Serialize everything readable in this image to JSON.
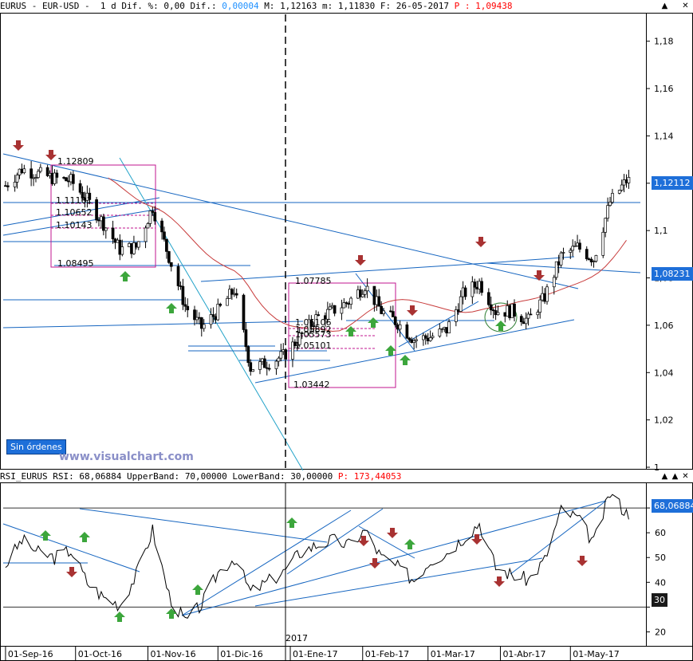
{
  "header": {
    "symbol": "EURUS - EUR-USD -",
    "period": "1 d",
    "dif_pct_label": "Dif. %:",
    "dif_pct": "0,00",
    "dif_label": "Dif.:",
    "dif": "0,00004",
    "max_label": "M:",
    "max": "1,12163",
    "min_label": "m:",
    "min": "1,11830",
    "date_label": "F:",
    "date": "26-05-2017",
    "p_label": "P :",
    "p_value": "1,09438"
  },
  "rsi_header": {
    "name": "RSI_EURUS RSI:",
    "value": "68,06884",
    "upper_label": "UpperBand:",
    "upper": "70,00000",
    "lower_label": "LowerBand:",
    "lower": "30,00000",
    "p_label": "P:",
    "p_value": "173,44053"
  },
  "window_controls": {
    "collapse": "▲",
    "expand": "▲",
    "close": "✕"
  },
  "orders_button": "Sin órdenes",
  "watermark": "www.visualchart.com",
  "price_badges": {
    "last": "1,12112",
    "level": "1,08231"
  },
  "rsi_badges": {
    "last": "68,06884",
    "band": "30"
  },
  "year_marker": "2017",
  "colors": {
    "candle_up": "#ffffff",
    "candle_down": "#000000",
    "trend_line": "#1565c0",
    "ma_line": "#c83c3c",
    "box_line": "#c0158f",
    "arrow_up": "#3ca63c",
    "arrow_down": "#a83232"
  },
  "chart_data": [
    {
      "type": "candlestick",
      "title": "EURUS - EUR-USD - 1 d",
      "y_axis_ticks": [
        "1,18",
        "1,16",
        "1,14",
        "1,12",
        "1,1",
        "1,08",
        "1,06",
        "1,04",
        "1,02",
        "1"
      ],
      "ylim": [
        1.0,
        1.19
      ],
      "x_axis_ticks": [
        "01-Sep-16",
        "01-Oct-16",
        "01-Nov-16",
        "01-Dic-16",
        "01-Ene-17",
        "01-Feb-17",
        "01-Mar-17",
        "01-Abr-17",
        "01-May-17"
      ],
      "xlim": [
        "2016-08-31",
        "2017-06-01"
      ],
      "annotations": [
        {
          "label": "1.12809",
          "value": 1.12809
        },
        {
          "label": "1.11161",
          "value": 1.11161
        },
        {
          "label": "1.10652",
          "value": 1.10652
        },
        {
          "label": "1.10143",
          "value": 1.10143
        },
        {
          "label": "1.08495",
          "value": 1.08495
        },
        {
          "label": "1.07785",
          "value": 1.07785
        },
        {
          "label": "1.06106",
          "value": 1.06106
        },
        {
          "label": "1.05892",
          "value": 1.05892
        },
        {
          "label": "1.05573",
          "value": 1.05573
        },
        {
          "label": "1.05101",
          "value": 1.05101
        },
        {
          "label": "1.03442",
          "value": 1.03442
        }
      ],
      "series": [
        {
          "date": "2016-09-01",
          "close": 1.119
        },
        {
          "date": "2016-09-08",
          "close": 1.126
        },
        {
          "date": "2016-09-15",
          "close": 1.124
        },
        {
          "date": "2016-09-22",
          "close": 1.122
        },
        {
          "date": "2016-09-29",
          "close": 1.121
        },
        {
          "date": "2016-10-06",
          "close": 1.113
        },
        {
          "date": "2016-10-13",
          "close": 1.103
        },
        {
          "date": "2016-10-20",
          "close": 1.092
        },
        {
          "date": "2016-10-27",
          "close": 1.093
        },
        {
          "date": "2016-11-03",
          "close": 1.11
        },
        {
          "date": "2016-11-10",
          "close": 1.089
        },
        {
          "date": "2016-11-17",
          "close": 1.068
        },
        {
          "date": "2016-11-24",
          "close": 1.059
        },
        {
          "date": "2016-12-01",
          "close": 1.066
        },
        {
          "date": "2016-12-08",
          "close": 1.075
        },
        {
          "date": "2016-12-15",
          "close": 1.042
        },
        {
          "date": "2016-12-22",
          "close": 1.044
        },
        {
          "date": "2016-12-29",
          "close": 1.047
        },
        {
          "date": "2017-01-05",
          "close": 1.055
        },
        {
          "date": "2017-01-12",
          "close": 1.063
        },
        {
          "date": "2017-01-19",
          "close": 1.066
        },
        {
          "date": "2017-01-26",
          "close": 1.07
        },
        {
          "date": "2017-02-02",
          "close": 1.077
        },
        {
          "date": "2017-02-09",
          "close": 1.066
        },
        {
          "date": "2017-02-16",
          "close": 1.061
        },
        {
          "date": "2017-02-23",
          "close": 1.054
        },
        {
          "date": "2017-03-02",
          "close": 1.055
        },
        {
          "date": "2017-03-09",
          "close": 1.058
        },
        {
          "date": "2017-03-16",
          "close": 1.073
        },
        {
          "date": "2017-03-23",
          "close": 1.078
        },
        {
          "date": "2017-03-30",
          "close": 1.066
        },
        {
          "date": "2017-04-06",
          "close": 1.066
        },
        {
          "date": "2017-04-13",
          "close": 1.062
        },
        {
          "date": "2017-04-20",
          "close": 1.072
        },
        {
          "date": "2017-04-27",
          "close": 1.089
        },
        {
          "date": "2017-05-04",
          "close": 1.093
        },
        {
          "date": "2017-05-11",
          "close": 1.088
        },
        {
          "date": "2017-05-18",
          "close": 1.112
        },
        {
          "date": "2017-05-25",
          "close": 1.121
        }
      ]
    },
    {
      "type": "line",
      "title": "RSI_EURUS RSI",
      "y_axis_ticks": [
        "70",
        "60",
        "50",
        "40",
        "30",
        "20"
      ],
      "ylim": [
        15,
        80
      ],
      "bands": {
        "upper": 70,
        "lower": 30
      },
      "series": [
        {
          "name": "RSI",
          "values": [
            {
              "date": "2016-09-01",
              "value": 47
            },
            {
              "date": "2016-09-08",
              "value": 57
            },
            {
              "date": "2016-09-15",
              "value": 52
            },
            {
              "date": "2016-09-22",
              "value": 50
            },
            {
              "date": "2016-09-29",
              "value": 53
            },
            {
              "date": "2016-10-06",
              "value": 40
            },
            {
              "date": "2016-10-13",
              "value": 34
            },
            {
              "date": "2016-10-20",
              "value": 31
            },
            {
              "date": "2016-10-27",
              "value": 43
            },
            {
              "date": "2016-11-03",
              "value": 61
            },
            {
              "date": "2016-11-10",
              "value": 35
            },
            {
              "date": "2016-11-17",
              "value": 24
            },
            {
              "date": "2016-11-24",
              "value": 31
            },
            {
              "date": "2016-12-01",
              "value": 44
            },
            {
              "date": "2016-12-08",
              "value": 50
            },
            {
              "date": "2016-12-15",
              "value": 36
            },
            {
              "date": "2016-12-22",
              "value": 40
            },
            {
              "date": "2016-12-29",
              "value": 44
            },
            {
              "date": "2017-01-05",
              "value": 52
            },
            {
              "date": "2017-01-12",
              "value": 55
            },
            {
              "date": "2017-01-19",
              "value": 57
            },
            {
              "date": "2017-01-26",
              "value": 55
            },
            {
              "date": "2017-02-02",
              "value": 61
            },
            {
              "date": "2017-02-09",
              "value": 50
            },
            {
              "date": "2017-02-16",
              "value": 46
            },
            {
              "date": "2017-02-23",
              "value": 41
            },
            {
              "date": "2017-03-02",
              "value": 49
            },
            {
              "date": "2017-03-09",
              "value": 52
            },
            {
              "date": "2017-03-16",
              "value": 58
            },
            {
              "date": "2017-03-23",
              "value": 64
            },
            {
              "date": "2017-03-30",
              "value": 46
            },
            {
              "date": "2017-04-06",
              "value": 43
            },
            {
              "date": "2017-04-13",
              "value": 41
            },
            {
              "date": "2017-04-20",
              "value": 49
            },
            {
              "date": "2017-04-27",
              "value": 69
            },
            {
              "date": "2017-05-04",
              "value": 66
            },
            {
              "date": "2017-05-11",
              "value": 56
            },
            {
              "date": "2017-05-18",
              "value": 76
            },
            {
              "date": "2017-05-25",
              "value": 68
            }
          ]
        }
      ]
    }
  ]
}
